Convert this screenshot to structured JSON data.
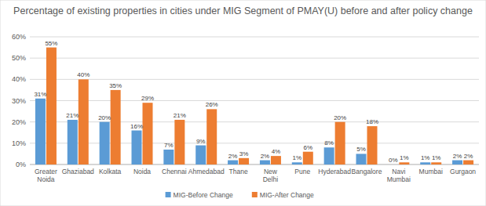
{
  "chart_data": {
    "type": "bar",
    "title": "Percentage of existing properties in cities under MIG Segment of PMAY(U) before and after policy change",
    "categories": [
      "Greater Noida",
      "Ghaziabad",
      "Kolkata",
      "Noida",
      "Chennai",
      "Ahmedabad",
      "Thane",
      "New Delhi",
      "Pune",
      "Hyderabad",
      "Bangalore",
      "Navi Mumbai",
      "Mumbai",
      "Gurgaon"
    ],
    "series": [
      {
        "name": "MIG-Before Change",
        "color": "#5b9bd5",
        "values": [
          31,
          21,
          20,
          16,
          7,
          9,
          2,
          2,
          1,
          8,
          5,
          0,
          1,
          2
        ],
        "value_labels": [
          "31%",
          "21%",
          "20%",
          "16%",
          "7%",
          "9%",
          "2%",
          "2%",
          "1%",
          "8%",
          "5%",
          "0%",
          "1%",
          "2%"
        ]
      },
      {
        "name": "MIG-After Change",
        "color": "#ed7d31",
        "values": [
          55,
          40,
          35,
          29,
          21,
          26,
          3,
          4,
          6,
          20,
          18,
          1,
          1,
          2
        ],
        "value_labels": [
          "55%",
          "40%",
          "35%",
          "29%",
          "21%",
          "26%",
          "3%",
          "4%",
          "6%",
          "20%",
          "18%",
          "1%",
          "1%",
          "2%"
        ]
      }
    ],
    "ylim": [
      0,
      60
    ],
    "yticks": [
      {
        "value": 0,
        "label": "0%"
      },
      {
        "value": 10,
        "label": "10%"
      },
      {
        "value": 20,
        "label": "20%"
      },
      {
        "value": 30,
        "label": "30%"
      },
      {
        "value": 40,
        "label": "40%"
      },
      {
        "value": 50,
        "label": "50%"
      },
      {
        "value": 60,
        "label": "60%"
      }
    ],
    "grid": true,
    "legend": "bottom",
    "data_labels": true
  }
}
